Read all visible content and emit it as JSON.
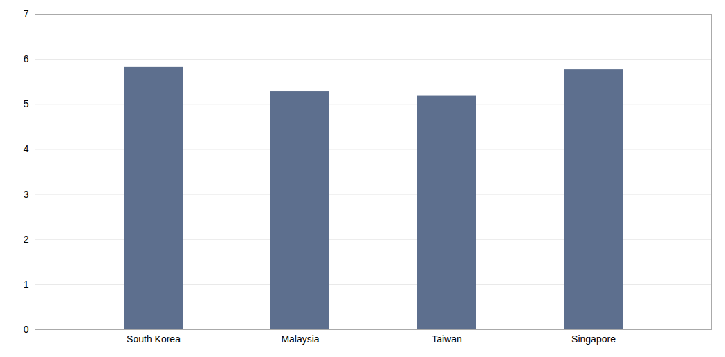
{
  "chart_data": {
    "type": "bar",
    "categories": [
      "South Korea",
      "Malaysia",
      "Taiwan",
      "Singapore"
    ],
    "values": [
      5.82,
      5.28,
      5.18,
      5.77
    ],
    "color": "#5d6f8e",
    "ylim": [
      0,
      7
    ],
    "yticks": [
      0,
      1,
      2,
      3,
      4,
      5,
      6,
      7
    ],
    "grid": true
  }
}
